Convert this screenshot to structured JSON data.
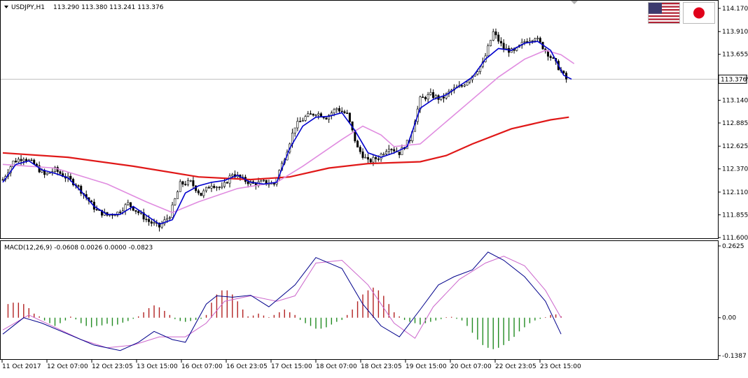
{
  "window": {
    "symbol_header": "USDJPY,H1",
    "ohlc_header": "113.290 113.380 113.241 113.376",
    "macd_header": "MACD(12,26,9) -0.0608 0.0026 0.0000 -0.0823",
    "current_price_label": "113.376"
  },
  "flags": {
    "left": "us-flag-icon",
    "right": "jp-flag-icon"
  },
  "colors": {
    "price_ma_fast": "#0000cd",
    "price_ma_mid": "#e08ce0",
    "price_ma_slow": "#e01818",
    "candle": "#000000",
    "macd_main": "#00008b",
    "macd_signal": "#cc66cc",
    "hist_pos": "#b22222",
    "hist_neg": "#228b22"
  },
  "chart_data": [
    {
      "type": "candlestick",
      "symbol": "USDJPY",
      "timeframe": "H1",
      "y_ticks": [
        "114.170",
        "113.910",
        "113.655",
        "113.395",
        "113.140",
        "112.885",
        "112.625",
        "112.370",
        "112.110",
        "111.855",
        "111.600"
      ],
      "ylim": [
        111.6,
        114.17
      ],
      "current_price": 113.376,
      "x_ticks": [
        "11 Oct 2017",
        "12 Oct 07:00",
        "12 Oct 23:05",
        "13 Oct 15:00",
        "16 Oct 07:00",
        "16 Oct 23:05",
        "17 Oct 15:00",
        "18 Oct 07:00",
        "18 Oct 23:05",
        "19 Oct 15:00",
        "20 Oct 07:00",
        "22 Oct 23:05",
        "23 Oct 15:00"
      ],
      "close_path": [
        [
          0,
          112.25
        ],
        [
          4,
          112.45
        ],
        [
          8,
          112.5
        ],
        [
          12,
          112.42
        ],
        [
          16,
          112.3
        ],
        [
          20,
          112.36
        ],
        [
          24,
          112.28
        ],
        [
          28,
          112.2
        ],
        [
          32,
          112.05
        ],
        [
          36,
          111.9
        ],
        [
          40,
          111.85
        ],
        [
          44,
          111.88
        ],
        [
          48,
          111.98
        ],
        [
          52,
          111.88
        ],
        [
          56,
          111.78
        ],
        [
          60,
          111.72
        ],
        [
          64,
          111.85
        ],
        [
          68,
          112.2
        ],
        [
          72,
          112.22
        ],
        [
          76,
          112.08
        ],
        [
          80,
          112.2
        ],
        [
          84,
          112.15
        ],
        [
          88,
          112.32
        ],
        [
          92,
          112.25
        ],
        [
          96,
          112.2
        ],
        [
          100,
          112.22
        ],
        [
          104,
          112.2
        ],
        [
          108,
          112.5
        ],
        [
          112,
          112.85
        ],
        [
          116,
          112.95
        ],
        [
          120,
          113.0
        ],
        [
          124,
          112.95
        ],
        [
          128,
          113.05
        ],
        [
          132,
          112.98
        ],
        [
          136,
          112.6
        ],
        [
          140,
          112.45
        ],
        [
          144,
          112.5
        ],
        [
          148,
          112.62
        ],
        [
          152,
          112.55
        ],
        [
          156,
          112.7
        ],
        [
          160,
          113.15
        ],
        [
          164,
          113.2
        ],
        [
          168,
          113.15
        ],
        [
          172,
          113.25
        ],
        [
          176,
          113.3
        ],
        [
          180,
          113.42
        ],
        [
          184,
          113.55
        ],
        [
          188,
          113.9
        ],
        [
          192,
          113.72
        ],
        [
          196,
          113.68
        ],
        [
          200,
          113.8
        ],
        [
          204,
          113.85
        ],
        [
          208,
          113.7
        ],
        [
          212,
          113.55
        ],
        [
          216,
          113.376
        ]
      ],
      "series": [
        {
          "name": "",
          "style": "ma_fast",
          "points": [
            [
              0,
              112.22
            ],
            [
              5,
              112.42
            ],
            [
              10,
              112.46
            ],
            [
              15,
              112.36
            ],
            [
              20,
              112.32
            ],
            [
              25,
              112.27
            ],
            [
              30,
              112.12
            ],
            [
              35,
              111.95
            ],
            [
              40,
              111.86
            ],
            [
              45,
              111.86
            ],
            [
              50,
              111.95
            ],
            [
              55,
              111.85
            ],
            [
              60,
              111.75
            ],
            [
              65,
              111.8
            ],
            [
              70,
              112.1
            ],
            [
              75,
              112.18
            ],
            [
              80,
              112.22
            ],
            [
              85,
              112.24
            ],
            [
              90,
              112.3
            ],
            [
              95,
              112.22
            ],
            [
              100,
              112.2
            ],
            [
              105,
              112.22
            ],
            [
              110,
              112.6
            ],
            [
              115,
              112.85
            ],
            [
              120,
              112.95
            ],
            [
              125,
              112.96
            ],
            [
              130,
              113.0
            ],
            [
              135,
              112.8
            ],
            [
              140,
              112.55
            ],
            [
              145,
              112.5
            ],
            [
              150,
              112.55
            ],
            [
              155,
              112.62
            ],
            [
              160,
              113.05
            ],
            [
              165,
              113.15
            ],
            [
              170,
              113.2
            ],
            [
              175,
              113.3
            ],
            [
              180,
              113.4
            ],
            [
              185,
              113.6
            ],
            [
              190,
              113.72
            ],
            [
              195,
              113.7
            ],
            [
              200,
              113.78
            ],
            [
              205,
              113.8
            ],
            [
              210,
              113.7
            ],
            [
              215,
              113.42
            ],
            [
              218,
              113.376
            ]
          ]
        },
        {
          "name": "",
          "style": "ma_mid",
          "points": [
            [
              0,
              112.42
            ],
            [
              20,
              112.38
            ],
            [
              40,
              112.2
            ],
            [
              55,
              112.0
            ],
            [
              65,
              111.88
            ],
            [
              75,
              112.0
            ],
            [
              90,
              112.15
            ],
            [
              105,
              112.22
            ],
            [
              115,
              112.4
            ],
            [
              130,
              112.7
            ],
            [
              138,
              112.85
            ],
            [
              145,
              112.75
            ],
            [
              150,
              112.62
            ],
            [
              160,
              112.65
            ],
            [
              170,
              112.9
            ],
            [
              180,
              113.15
            ],
            [
              190,
              113.4
            ],
            [
              200,
              113.6
            ],
            [
              208,
              113.7
            ],
            [
              214,
              113.65
            ],
            [
              219,
              113.55
            ]
          ]
        },
        {
          "name": "",
          "style": "ma_slow",
          "points": [
            [
              0,
              112.55
            ],
            [
              25,
              112.5
            ],
            [
              50,
              112.4
            ],
            [
              75,
              112.28
            ],
            [
              95,
              112.25
            ],
            [
              110,
              112.28
            ],
            [
              125,
              112.38
            ],
            [
              140,
              112.43
            ],
            [
              160,
              112.45
            ],
            [
              170,
              112.52
            ],
            [
              180,
              112.65
            ],
            [
              195,
              112.82
            ],
            [
              210,
              112.92
            ],
            [
              217,
              112.95
            ]
          ]
        }
      ]
    },
    {
      "type": "bar",
      "title": "MACD(12,26,9)",
      "y_ticks": [
        "0.2625",
        "0.00",
        "-0.1387"
      ],
      "ylim": [
        -0.1387,
        0.2625
      ],
      "histogram": [
        [
          2,
          0.05
        ],
        [
          4,
          0.055
        ],
        [
          6,
          0.055
        ],
        [
          8,
          0.05
        ],
        [
          10,
          0.035
        ],
        [
          12,
          0.015
        ],
        [
          14,
          0.005
        ],
        [
          16,
          -0.01
        ],
        [
          18,
          -0.02
        ],
        [
          20,
          -0.03
        ],
        [
          22,
          -0.02
        ],
        [
          24,
          -0.01
        ],
        [
          26,
          0.004
        ],
        [
          28,
          -0.006
        ],
        [
          30,
          -0.02
        ],
        [
          32,
          -0.03
        ],
        [
          34,
          -0.035
        ],
        [
          36,
          -0.03
        ],
        [
          38,
          -0.028
        ],
        [
          40,
          -0.022
        ],
        [
          42,
          -0.03
        ],
        [
          44,
          -0.025
        ],
        [
          46,
          -0.018
        ],
        [
          48,
          -0.012
        ],
        [
          50,
          -0.004
        ],
        [
          52,
          0.005
        ],
        [
          54,
          0.02
        ],
        [
          56,
          0.035
        ],
        [
          58,
          0.045
        ],
        [
          60,
          0.038
        ],
        [
          62,
          0.025
        ],
        [
          64,
          0.01
        ],
        [
          66,
          -0.005
        ],
        [
          68,
          -0.012
        ],
        [
          70,
          -0.015
        ],
        [
          72,
          -0.012
        ],
        [
          74,
          -0.008
        ],
        [
          76,
          -0.004
        ],
        [
          78,
          0.01
        ],
        [
          80,
          0.055
        ],
        [
          82,
          0.085
        ],
        [
          84,
          0.1
        ],
        [
          86,
          0.1
        ],
        [
          88,
          0.085
        ],
        [
          90,
          0.06
        ],
        [
          92,
          0.03
        ],
        [
          94,
          0.005
        ],
        [
          96,
          0.008
        ],
        [
          98,
          0.015
        ],
        [
          100,
          0.008
        ],
        [
          102,
          0.002
        ],
        [
          104,
          0.01
        ],
        [
          106,
          0.02
        ],
        [
          108,
          0.03
        ],
        [
          110,
          0.02
        ],
        [
          112,
          0.01
        ],
        [
          114,
          -0.008
        ],
        [
          116,
          -0.02
        ],
        [
          118,
          -0.03
        ],
        [
          120,
          -0.04
        ],
        [
          122,
          -0.04
        ],
        [
          124,
          -0.035
        ],
        [
          126,
          -0.025
        ],
        [
          128,
          -0.015
        ],
        [
          130,
          -0.008
        ],
        [
          132,
          0.01
        ],
        [
          134,
          0.03
        ],
        [
          136,
          0.06
        ],
        [
          138,
          0.085
        ],
        [
          140,
          0.1
        ],
        [
          142,
          0.11
        ],
        [
          144,
          0.1
        ],
        [
          146,
          0.08
        ],
        [
          148,
          0.05
        ],
        [
          150,
          0.02
        ],
        [
          152,
          0.005
        ],
        [
          154,
          -0.008
        ],
        [
          156,
          -0.015
        ],
        [
          158,
          -0.02
        ],
        [
          160,
          -0.025
        ],
        [
          162,
          -0.02
        ],
        [
          164,
          -0.015
        ],
        [
          166,
          -0.01
        ],
        [
          168,
          -0.005
        ],
        [
          170,
          0.002
        ],
        [
          172,
          0.003
        ],
        [
          174,
          -0.004
        ],
        [
          176,
          -0.01
        ],
        [
          178,
          -0.03
        ],
        [
          180,
          -0.055
        ],
        [
          182,
          -0.08
        ],
        [
          184,
          -0.1
        ],
        [
          186,
          -0.11
        ],
        [
          188,
          -0.115
        ],
        [
          190,
          -0.11
        ],
        [
          192,
          -0.1
        ],
        [
          194,
          -0.085
        ],
        [
          196,
          -0.07
        ],
        [
          198,
          -0.05
        ],
        [
          200,
          -0.035
        ],
        [
          202,
          -0.02
        ],
        [
          204,
          -0.01
        ],
        [
          206,
          -0.004
        ],
        [
          208,
          0.002
        ],
        [
          210,
          0.01
        ],
        [
          212,
          0.012
        ],
        [
          214,
          0.005
        ]
      ],
      "macd_series": {
        "name": "",
        "points": [
          [
            0,
            -0.06
          ],
          [
            8,
            0.0
          ],
          [
            15,
            -0.02
          ],
          [
            25,
            -0.06
          ],
          [
            35,
            -0.1
          ],
          [
            45,
            -0.12
          ],
          [
            52,
            -0.09
          ],
          [
            58,
            -0.05
          ],
          [
            65,
            -0.08
          ],
          [
            70,
            -0.09
          ],
          [
            78,
            0.05
          ],
          [
            82,
            0.08
          ],
          [
            88,
            0.075
          ],
          [
            95,
            0.082
          ],
          [
            102,
            0.04
          ],
          [
            112,
            0.12
          ],
          [
            120,
            0.22
          ],
          [
            130,
            0.18
          ],
          [
            138,
            0.05
          ],
          [
            145,
            -0.03
          ],
          [
            152,
            -0.07
          ],
          [
            160,
            0.03
          ],
          [
            167,
            0.12
          ],
          [
            173,
            0.15
          ],
          [
            180,
            0.175
          ],
          [
            186,
            0.24
          ],
          [
            192,
            0.21
          ],
          [
            200,
            0.15
          ],
          [
            208,
            0.06
          ],
          [
            214,
            -0.06
          ]
        ]
      },
      "signal_series": {
        "name": "",
        "points": [
          [
            0,
            -0.045
          ],
          [
            10,
            0.01
          ],
          [
            20,
            -0.035
          ],
          [
            30,
            -0.08
          ],
          [
            40,
            -0.11
          ],
          [
            50,
            -0.1
          ],
          [
            60,
            -0.07
          ],
          [
            70,
            -0.07
          ],
          [
            78,
            -0.02
          ],
          [
            85,
            0.06
          ],
          [
            95,
            0.08
          ],
          [
            105,
            0.06
          ],
          [
            112,
            0.08
          ],
          [
            120,
            0.2
          ],
          [
            130,
            0.21
          ],
          [
            140,
            0.12
          ],
          [
            150,
            -0.02
          ],
          [
            158,
            -0.075
          ],
          [
            165,
            0.04
          ],
          [
            175,
            0.14
          ],
          [
            185,
            0.2
          ],
          [
            192,
            0.225
          ],
          [
            200,
            0.19
          ],
          [
            208,
            0.1
          ],
          [
            214,
            0.0
          ]
        ]
      }
    }
  ]
}
